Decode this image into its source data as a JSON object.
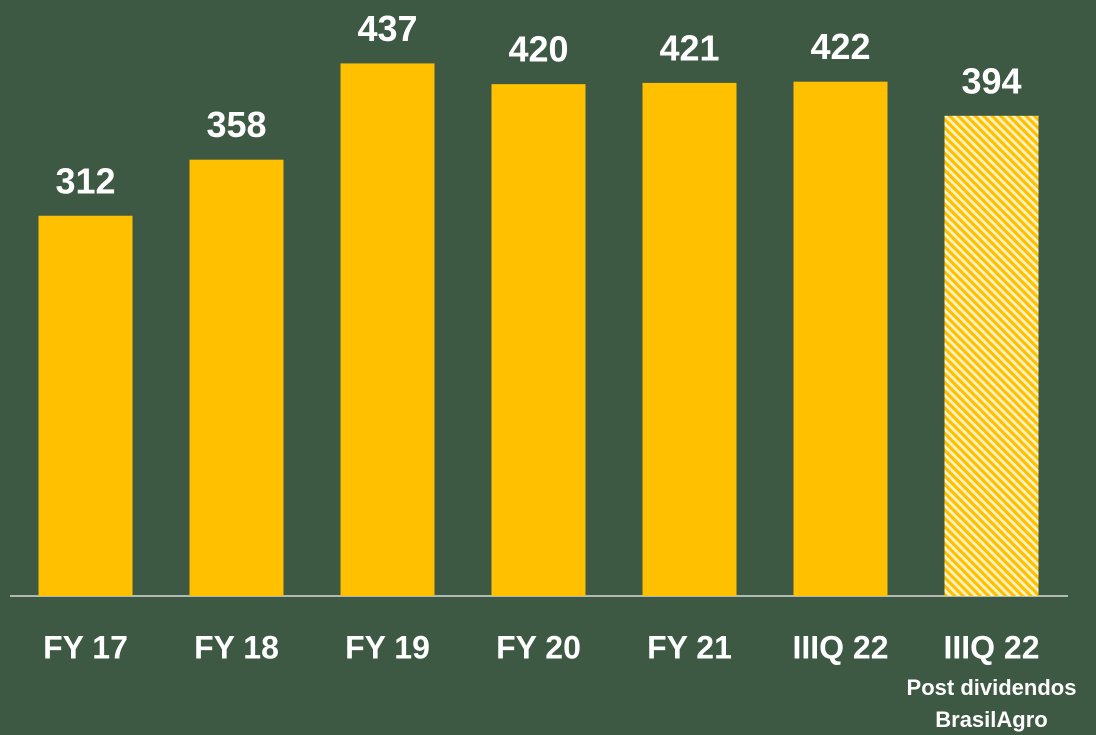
{
  "chart_data": {
    "type": "bar",
    "categories": [
      "FY 17",
      "FY 18",
      "FY 19",
      "FY 20",
      "FY 21",
      "IIIQ 22",
      "IIIQ 22"
    ],
    "values": [
      312,
      358,
      437,
      420,
      421,
      422,
      394
    ],
    "color": "#ffc000",
    "bar_styles": [
      "solid",
      "solid",
      "solid",
      "solid",
      "solid",
      "solid",
      "hatched"
    ],
    "annotations": [
      "Post dividendos",
      "BrasilAgro"
    ],
    "ylim": [
      0,
      480
    ]
  }
}
